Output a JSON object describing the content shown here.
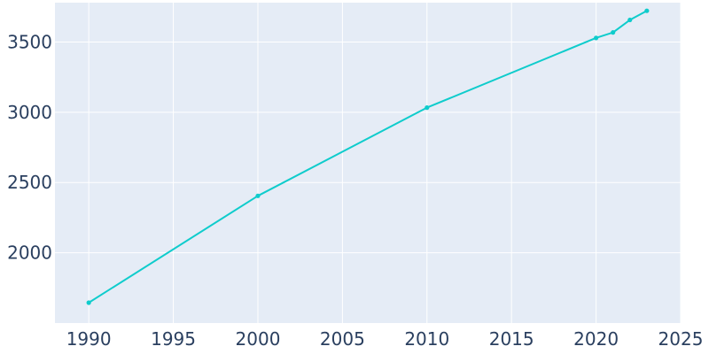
{
  "chart_data": {
    "type": "line",
    "title": "",
    "xlabel": "",
    "ylabel": "",
    "x": [
      1990,
      2000,
      2010,
      2020,
      2021,
      2022,
      2023
    ],
    "series": [
      {
        "values": [
          1645,
          2405,
          3033,
          3529,
          3568,
          3657,
          3722
        ]
      }
    ],
    "xlim": [
      1988,
      2025
    ],
    "ylim": [
      1500,
      3780
    ],
    "xticks": [
      1990,
      1995,
      2000,
      2005,
      2010,
      2015,
      2020,
      2025
    ],
    "yticks": [
      2000,
      2500,
      3000,
      3500
    ],
    "grid": true,
    "legend": "none",
    "colors": {
      "line": "#0fcccc",
      "plot_background": "#e5ecf6",
      "grid": "#ffffff",
      "tick_text": "#2a3f5f"
    }
  }
}
